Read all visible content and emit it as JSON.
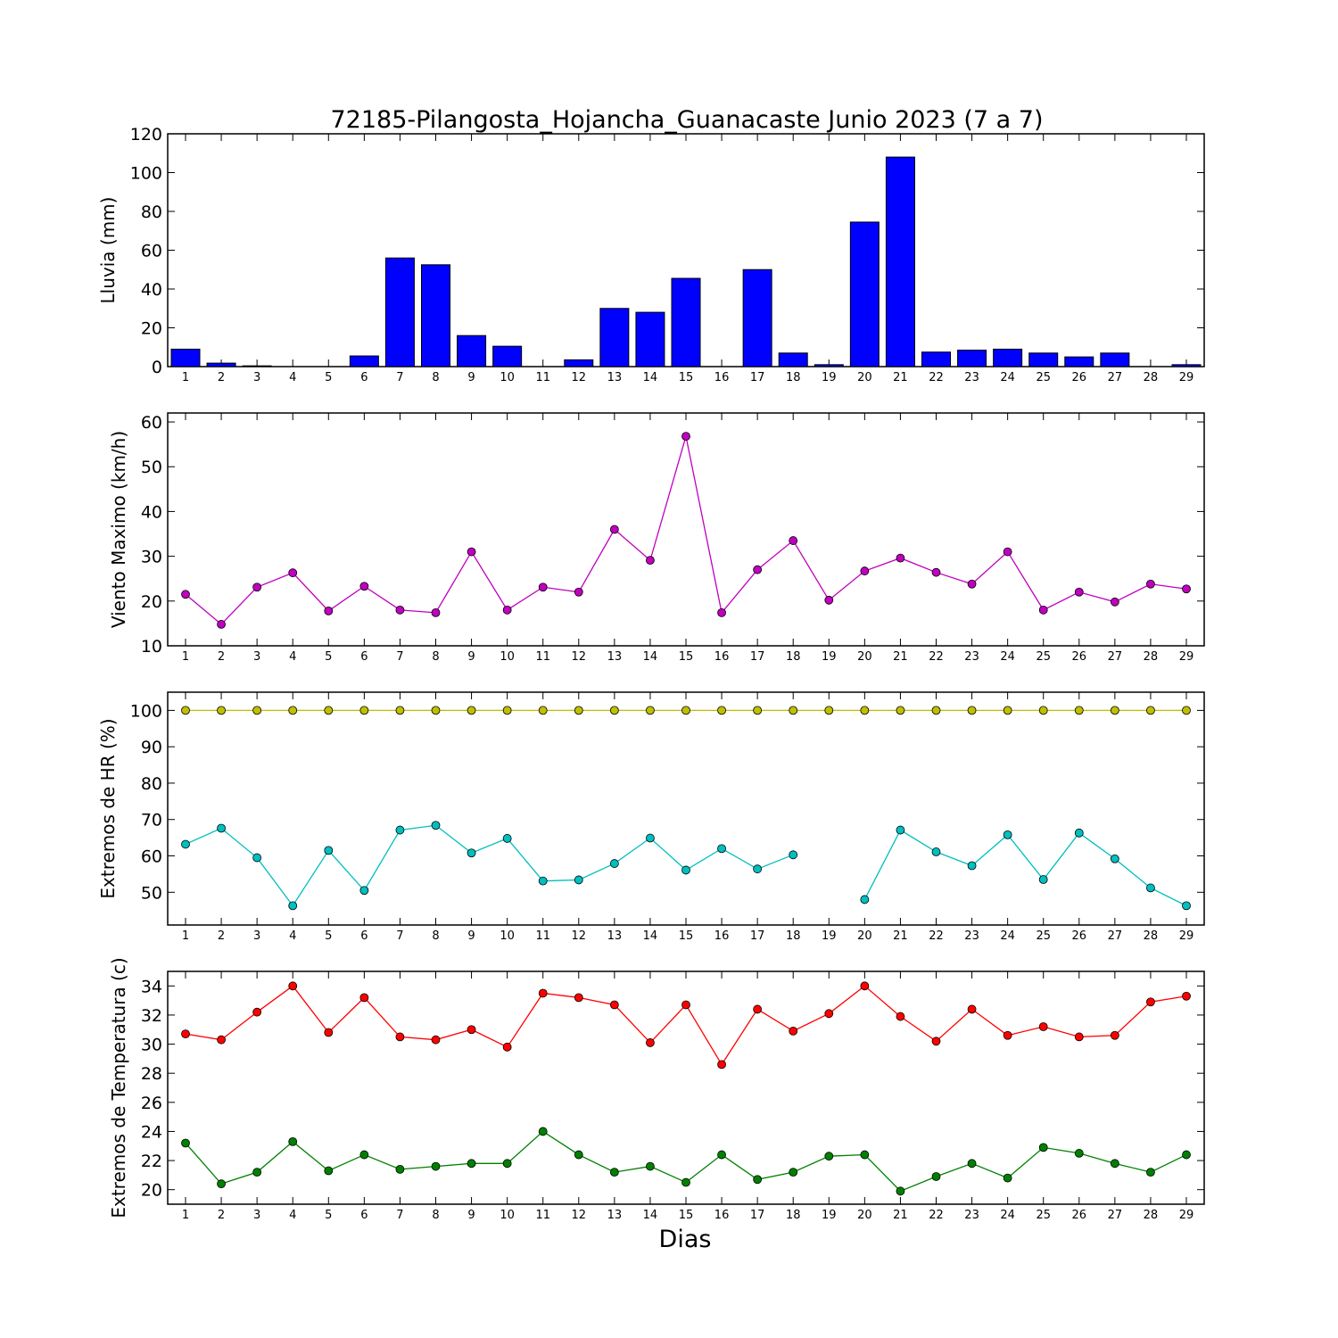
{
  "title": "72185-Pilangosta_Hojancha_Guanacaste Junio 2023  (7 a 7)",
  "xlabel": "Dias",
  "days": [
    1,
    2,
    3,
    4,
    5,
    6,
    7,
    8,
    9,
    10,
    11,
    12,
    13,
    14,
    15,
    16,
    17,
    18,
    19,
    20,
    21,
    22,
    23,
    24,
    25,
    26,
    27,
    28,
    29
  ],
  "chart_data": [
    {
      "type": "bar",
      "ylabel": "Lluvia (mm)",
      "ylim": [
        0,
        120
      ],
      "yticks": [
        0,
        20,
        40,
        60,
        80,
        100,
        120
      ],
      "categories": [
        1,
        2,
        3,
        4,
        5,
        6,
        7,
        8,
        9,
        10,
        11,
        12,
        13,
        14,
        15,
        16,
        17,
        18,
        19,
        20,
        21,
        22,
        23,
        24,
        25,
        26,
        27,
        28,
        29
      ],
      "series": [
        {
          "color": "#0000ff",
          "values": [
            9,
            1.8,
            0.4,
            0,
            0,
            5.5,
            56,
            52.5,
            16,
            10.5,
            0,
            3.5,
            30,
            28,
            45.5,
            0,
            50,
            7,
            1,
            74.5,
            108,
            7.5,
            8.5,
            9,
            7,
            5,
            7,
            0,
            1
          ]
        }
      ]
    },
    {
      "type": "line",
      "ylabel": "Viento Maximo (km/h)",
      "ylim": [
        10,
        62
      ],
      "yticks": [
        10,
        20,
        30,
        40,
        50,
        60
      ],
      "x": [
        1,
        2,
        3,
        4,
        5,
        6,
        7,
        8,
        9,
        10,
        11,
        12,
        13,
        14,
        15,
        16,
        17,
        18,
        19,
        20,
        21,
        22,
        23,
        24,
        25,
        26,
        27,
        28,
        29
      ],
      "series": [
        {
          "color": "#bf00bf",
          "values": [
            21.5,
            14.8,
            23.1,
            26.3,
            17.8,
            23.3,
            18,
            17.4,
            31,
            18,
            23.1,
            22,
            36,
            29.1,
            56.8,
            17.4,
            27,
            33.5,
            20.2,
            26.7,
            29.6,
            26.4,
            23.8,
            31,
            18,
            22,
            19.8,
            23.8,
            22.7
          ]
        }
      ]
    },
    {
      "type": "line",
      "ylabel": "Extremos de HR (%)",
      "ylim": [
        41,
        105
      ],
      "yticks": [
        50,
        60,
        70,
        80,
        90,
        100
      ],
      "x": [
        1,
        2,
        3,
        4,
        5,
        6,
        7,
        8,
        9,
        10,
        11,
        12,
        13,
        14,
        15,
        16,
        17,
        18,
        19,
        20,
        21,
        22,
        23,
        24,
        25,
        26,
        27,
        28,
        29
      ],
      "series": [
        {
          "color": "#bfbf00",
          "values": [
            100,
            100,
            100,
            100,
            100,
            100,
            100,
            100,
            100,
            100,
            100,
            100,
            100,
            100,
            100,
            100,
            100,
            100,
            100,
            100,
            100,
            100,
            100,
            100,
            100,
            100,
            100,
            100,
            100
          ]
        },
        {
          "color": "#00bfbf",
          "values": [
            63.2,
            67.6,
            59.5,
            46.3,
            61.5,
            50.5,
            67.1,
            68.4,
            60.8,
            64.8,
            53.1,
            53.4,
            57.9,
            64.9,
            56.1,
            62,
            56.4,
            60.3,
            null,
            48,
            67.1,
            61.1,
            57.3,
            65.8,
            53.5,
            66.3,
            59.2,
            51.2,
            46.3
          ]
        }
      ]
    },
    {
      "type": "line",
      "ylabel": "Extremos de Temperatura (c)",
      "ylim": [
        19,
        35
      ],
      "yticks": [
        20,
        22,
        24,
        26,
        28,
        30,
        32,
        34
      ],
      "x": [
        1,
        2,
        3,
        4,
        5,
        6,
        7,
        8,
        9,
        10,
        11,
        12,
        13,
        14,
        15,
        16,
        17,
        18,
        19,
        20,
        21,
        22,
        23,
        24,
        25,
        26,
        27,
        28,
        29
      ],
      "series": [
        {
          "color": "#ff0000",
          "values": [
            30.7,
            30.3,
            32.2,
            34,
            30.8,
            33.2,
            30.5,
            30.3,
            31,
            29.8,
            33.5,
            33.2,
            32.7,
            30.1,
            32.7,
            28.6,
            32.4,
            30.9,
            32.1,
            34,
            31.9,
            30.2,
            32.4,
            30.6,
            31.2,
            30.5,
            30.6,
            32.9,
            33.3
          ]
        },
        {
          "color": "#008000",
          "values": [
            23.2,
            20.4,
            21.2,
            23.3,
            21.3,
            22.4,
            21.4,
            21.6,
            21.8,
            21.8,
            24,
            22.4,
            21.2,
            21.6,
            20.5,
            22.4,
            20.7,
            21.2,
            22.3,
            22.4,
            19.9,
            20.9,
            21.8,
            20.8,
            22.9,
            22.5,
            21.8,
            21.2,
            22.4
          ]
        }
      ]
    }
  ]
}
